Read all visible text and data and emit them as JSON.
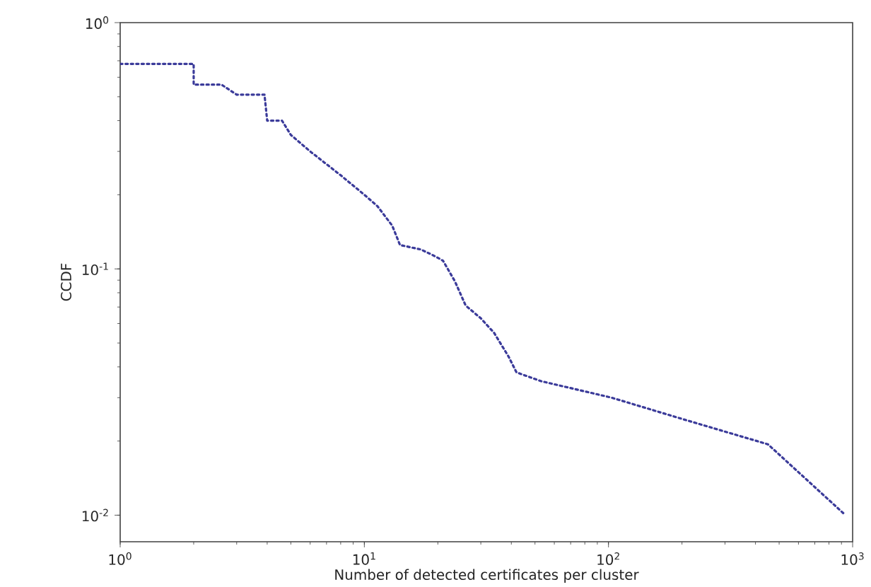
{
  "chart_data": {
    "type": "line",
    "xlabel": "Number of detected certificates per cluster",
    "ylabel": "CCDF",
    "log": "xy",
    "grid": false,
    "marker": "none",
    "line_style": "dotted",
    "xlim": [
      1,
      1000
    ],
    "ylim": [
      0.0078,
      1
    ],
    "xticks": [
      {
        "value": 1,
        "label": "10$^{0}$"
      },
      {
        "value": 10,
        "label": "10$^{1}$"
      },
      {
        "value": 100,
        "label": "10$^{2}$"
      },
      {
        "value": 1000,
        "label": "10$^{3}$"
      }
    ],
    "yticks": [
      {
        "value": 0.01,
        "label": "10$^{-2}$"
      },
      {
        "value": 0.1,
        "label": "10$^{-1}$"
      },
      {
        "value": 1,
        "label": "10$^{0}$"
      }
    ],
    "series": [
      {
        "color": "#3b3b9a",
        "x": [
          1,
          2,
          2,
          2.6,
          3,
          3.9,
          4,
          4.6,
          5,
          6,
          8,
          10,
          11.3,
          13,
          14,
          17,
          19,
          21,
          23.5,
          26,
          30,
          34,
          39,
          42,
          53,
          103,
          200,
          450,
          935
        ],
        "values": [
          0.68,
          0.68,
          0.56,
          0.56,
          0.51,
          0.51,
          0.4,
          0.4,
          0.35,
          0.3,
          0.24,
          0.2,
          0.18,
          0.15,
          0.125,
          0.12,
          0.114,
          0.108,
          0.089,
          0.071,
          0.063,
          0.055,
          0.044,
          0.038,
          0.035,
          0.03,
          0.0246,
          0.0194,
          0.01
        ]
      }
    ]
  }
}
